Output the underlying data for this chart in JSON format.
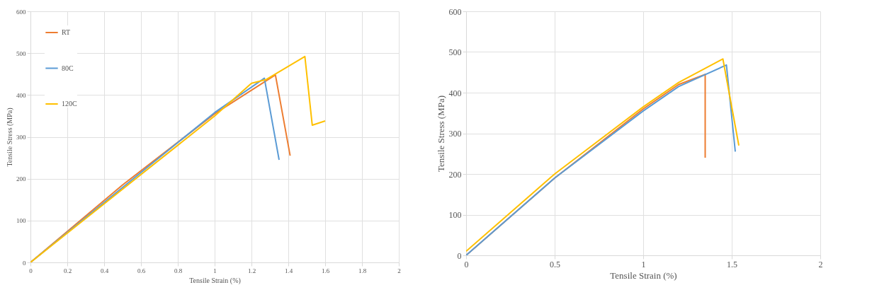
{
  "chart_data": [
    {
      "type": "line",
      "xlabel": "Tensile Strain (%)",
      "ylabel": "Tensile Stress (MPa)",
      "xlim": [
        0,
        2
      ],
      "xticks": [
        0,
        0.2,
        0.4,
        0.6,
        0.8,
        1,
        1.2,
        1.4,
        1.6,
        1.8,
        2
      ],
      "ylim": [
        0,
        600
      ],
      "yticks": [
        0,
        100,
        200,
        300,
        400,
        500,
        600
      ],
      "grid": true,
      "legend": "top left",
      "series": [
        {
          "name": "RT",
          "color": "#ed7d31",
          "x": [
            0,
            0.5,
            1,
            1.33,
            1.41
          ],
          "values": [
            0,
            185,
            355,
            448,
            255
          ]
        },
        {
          "name": "80C",
          "color": "#5b9bd5",
          "x": [
            0,
            1,
            1.27,
            1.35
          ],
          "values": [
            0,
            358,
            440,
            245
          ]
        },
        {
          "name": "120C",
          "color": "#ffc000",
          "x": [
            0,
            1,
            1.2,
            1.28,
            1.49,
            1.53,
            1.6
          ],
          "values": [
            0,
            350,
            428,
            437,
            492,
            328,
            338
          ]
        }
      ]
    },
    {
      "type": "line",
      "xlabel": "Tensile Strain (%)",
      "ylabel": "Tensile Stress (MPa)",
      "xlim": [
        0,
        2
      ],
      "xticks": [
        0,
        0.5,
        1,
        1.5,
        2
      ],
      "ylim": [
        0,
        600
      ],
      "yticks": [
        0,
        100,
        200,
        300,
        400,
        500,
        600
      ],
      "grid": true,
      "legend": "top left",
      "series": [
        {
          "name": "RT",
          "color": "#ed7d31",
          "x": [
            0,
            0.5,
            1,
            1.2,
            1.35,
            1.35
          ],
          "values": [
            0,
            190,
            360,
            420,
            445,
            240
          ]
        },
        {
          "name": "80C",
          "color": "#5b9bd5",
          "x": [
            0,
            0.5,
            1,
            1.2,
            1.47,
            1.52
          ],
          "values": [
            0,
            190,
            355,
            415,
            468,
            255
          ]
        },
        {
          "name": "120C",
          "color": "#ffc000",
          "x": [
            0,
            0.5,
            1,
            1.2,
            1.45,
            1.54
          ],
          "values": [
            10,
            200,
            365,
            425,
            483,
            270
          ]
        }
      ]
    }
  ]
}
